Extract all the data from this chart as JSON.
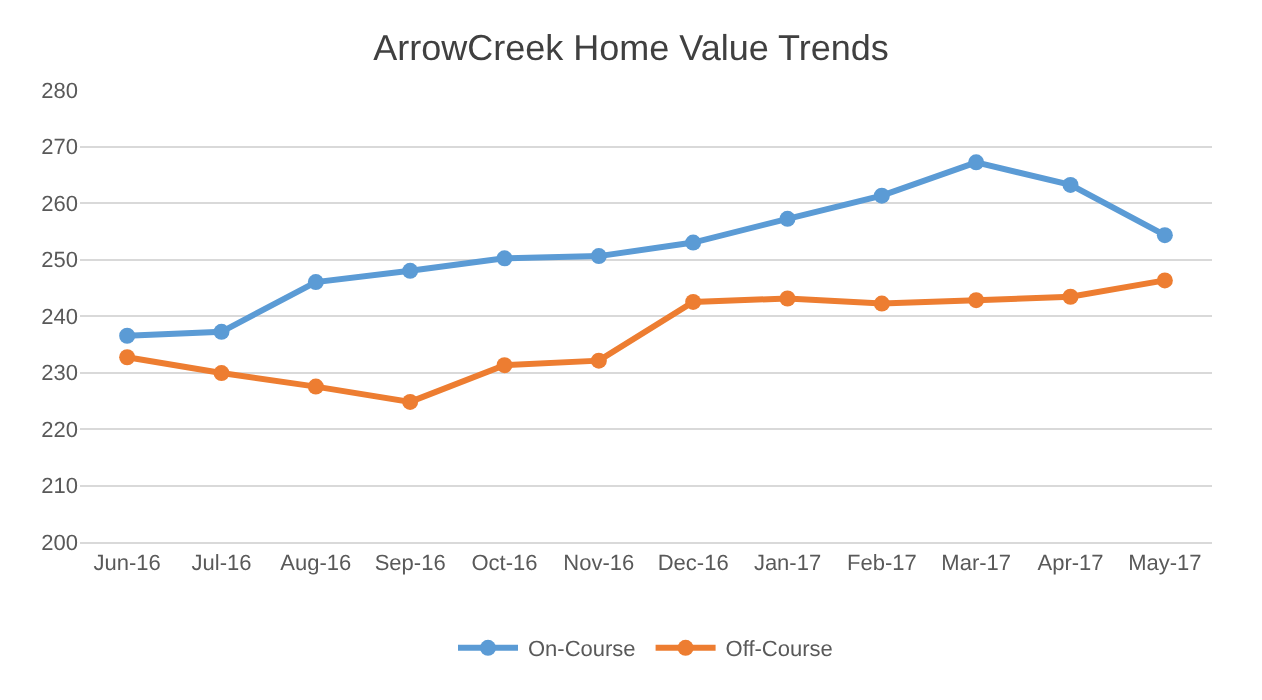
{
  "chart_data": {
    "type": "line",
    "title": "ArrowCreek Home Value Trends",
    "categories": [
      "Jun-16",
      "Jul-16",
      "Aug-16",
      "Sep-16",
      "Oct-16",
      "Nov-16",
      "Dec-16",
      "Jan-17",
      "Feb-17",
      "Mar-17",
      "Apr-17",
      "May-17"
    ],
    "series": [
      {
        "name": "On-Course",
        "color": "#5b9bd5",
        "values": [
          236.5,
          237.2,
          246,
          248,
          250.2,
          250.6,
          253,
          257.2,
          261.3,
          267.2,
          263.2,
          254.3
        ]
      },
      {
        "name": "Off-Course",
        "color": "#ed7d31",
        "values": [
          232.7,
          229.9,
          227.5,
          224.8,
          231.3,
          232.1,
          242.5,
          243.1,
          242.2,
          242.8,
          243.4,
          246.3
        ]
      }
    ],
    "ylim": [
      200,
      280
    ],
    "yticks": [
      200,
      210,
      220,
      230,
      240,
      250,
      260,
      270,
      280
    ],
    "grid": "y",
    "legend": "bottom",
    "marker": "circle",
    "line_style": "solid"
  }
}
